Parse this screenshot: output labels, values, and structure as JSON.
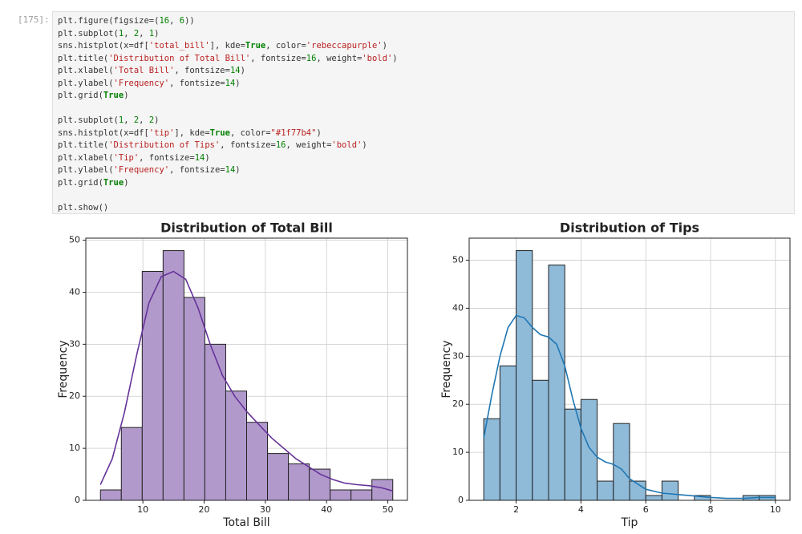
{
  "cell": {
    "prompt": "[175]:",
    "code": [
      [
        "plt.figure(figsize=(16, 6))",
        "plt.subplot(1, 2, 1)",
        "sns.histplot(x=df['total_bill'], kde=True, color='rebeccapurple')",
        "plt.title('Distribution of Total Bill', fontsize=16, weight='bold')",
        "plt.xlabel('Total Bill', fontsize=14)",
        "plt.ylabel('Frequency', fontsize=14)",
        "plt.grid(True)"
      ],
      [
        "plt.subplot(1, 2, 2)",
        "sns.histplot(x=df['tip'], kde=True, color=\"#1f77b4\")",
        "plt.title('Distribution of Tips', fontsize=16, weight='bold')",
        "plt.xlabel('Tip', fontsize=14)",
        "plt.ylabel('Frequency', fontsize=14)",
        "plt.grid(True)"
      ],
      [
        "plt.show()"
      ]
    ]
  },
  "chart_data": [
    {
      "type": "histogram",
      "title": "Distribution of Total Bill",
      "x_label": "Total Bill",
      "y_label": "Frequency",
      "bins": [
        3.07,
        6.48,
        9.89,
        13.3,
        16.71,
        20.12,
        23.53,
        26.94,
        30.35,
        33.76,
        37.17,
        40.58,
        43.99,
        47.4,
        50.81
      ],
      "counts": [
        2,
        14,
        44,
        48,
        39,
        30,
        21,
        15,
        9,
        7,
        6,
        2,
        2,
        4
      ],
      "color": "#b299cc",
      "edge_color": "#222222",
      "kde": {
        "color": "#663399",
        "x": [
          3.07,
          5,
          7,
          9,
          11,
          13,
          15,
          17,
          19,
          21,
          23,
          25,
          27,
          29,
          31,
          33,
          35,
          37,
          39,
          41,
          43,
          45,
          47,
          49,
          50.81
        ],
        "values": [
          3,
          8,
          17,
          28,
          38,
          43,
          44,
          42.5,
          37,
          30,
          24,
          20,
          17,
          14.5,
          12,
          10,
          8,
          6.5,
          5,
          4,
          3.3,
          3,
          2.8,
          2.4,
          1.8
        ]
      },
      "xlim": [
        0.68,
        53.2
      ],
      "xticks": [
        10,
        20,
        30,
        40,
        50
      ],
      "ylim": [
        0,
        50.4
      ],
      "yticks": [
        0,
        10,
        20,
        30,
        40,
        50
      ],
      "grid": true
    },
    {
      "type": "histogram",
      "title": "Distribution of Tips",
      "x_label": "Tip",
      "y_label": "Frequency",
      "bins": [
        1,
        1.5,
        2,
        2.5,
        3,
        3.5,
        4,
        4.5,
        5,
        5.5,
        6,
        6.5,
        7,
        7.5,
        8,
        8.5,
        9,
        9.5,
        10
      ],
      "counts": [
        17,
        28,
        52,
        25,
        49,
        19,
        21,
        4,
        16,
        4,
        1,
        4,
        0,
        1,
        0,
        0,
        1,
        1
      ],
      "color": "#8fbbd9",
      "edge_color": "#222222",
      "kde": {
        "color": "#1f77b4",
        "x": [
          1,
          1.25,
          1.5,
          1.75,
          2,
          2.25,
          2.5,
          2.75,
          3,
          3.25,
          3.5,
          3.75,
          4,
          4.25,
          4.5,
          4.75,
          5,
          5.25,
          5.5,
          6,
          6.5,
          7,
          7.5,
          8,
          8.5,
          9,
          9.5,
          10
        ],
        "values": [
          13,
          22,
          30,
          36,
          38.5,
          38,
          36,
          34.5,
          34,
          32.5,
          28,
          21,
          15,
          11,
          9,
          8,
          7.5,
          6.5,
          4.5,
          2.3,
          1.5,
          1.2,
          0.9,
          0.6,
          0.4,
          0.4,
          0.6,
          0.6
        ]
      },
      "xlim": [
        0.55,
        10.45
      ],
      "xticks": [
        2,
        4,
        6,
        8,
        10
      ],
      "ylim": [
        0,
        54.6
      ],
      "yticks": [
        0,
        10,
        20,
        30,
        40,
        50
      ],
      "grid": true
    }
  ]
}
